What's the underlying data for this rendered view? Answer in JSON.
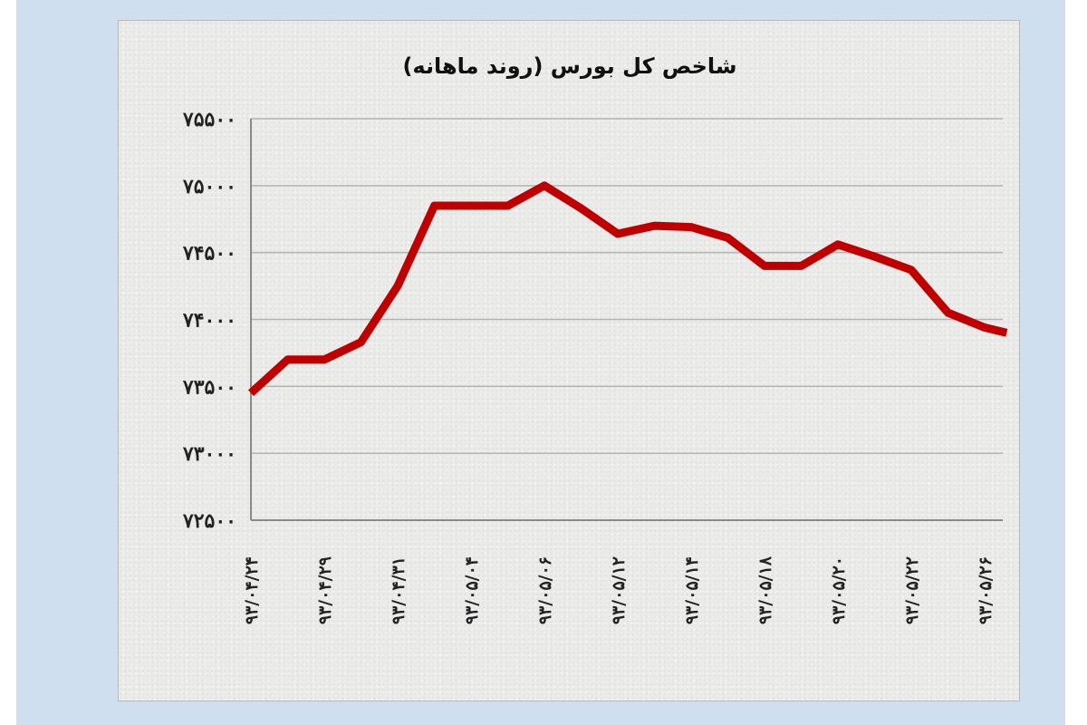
{
  "chart_data": {
    "type": "line",
    "title": "شاخص کل بورس (روند ماهانه)",
    "xlabel": "",
    "ylabel": "",
    "ylim": [
      72500,
      75500
    ],
    "yticks": [
      72500,
      73000,
      73500,
      74000,
      74500,
      75000,
      75500
    ],
    "ytick_labels": [
      "۷۲۵۰۰",
      "۷۳۰۰۰",
      "۷۳۵۰۰",
      "۷۴۰۰۰",
      "۷۴۵۰۰",
      "۷۵۰۰۰",
      "۷۵۵۰۰"
    ],
    "x_tick_labels": [
      "۹۳/۰۴/۲۴",
      "۹۳/۰۴/۲۹",
      "۹۳/۰۴/۳۱",
      "۹۳/۰۵/۰۴",
      "۹۳/۰۵/۰۶",
      "۹۳/۰۵/۱۲",
      "۹۳/۰۵/۱۴",
      "۹۳/۰۵/۱۸",
      "۹۳/۰۵/۲۰",
      "۹۳/۰۵/۲۲",
      "۹۳/۰۵/۲۶"
    ],
    "grid": true,
    "legend": "none",
    "line_color": "#c00000",
    "series": [
      {
        "x": [
          0,
          0.5,
          1,
          1.5,
          2,
          2.5,
          3,
          3.5,
          4,
          4.5,
          5,
          5.5,
          6,
          6.5,
          7,
          7.5,
          8,
          8.5,
          9,
          9.5,
          10,
          10.3
        ],
        "values": [
          73450,
          73700,
          73700,
          73830,
          74250,
          74850,
          74850,
          74850,
          75000,
          74830,
          74640,
          74700,
          74690,
          74610,
          74400,
          74400,
          74560,
          74470,
          74370,
          74050,
          73940,
          73900
        ]
      }
    ]
  }
}
